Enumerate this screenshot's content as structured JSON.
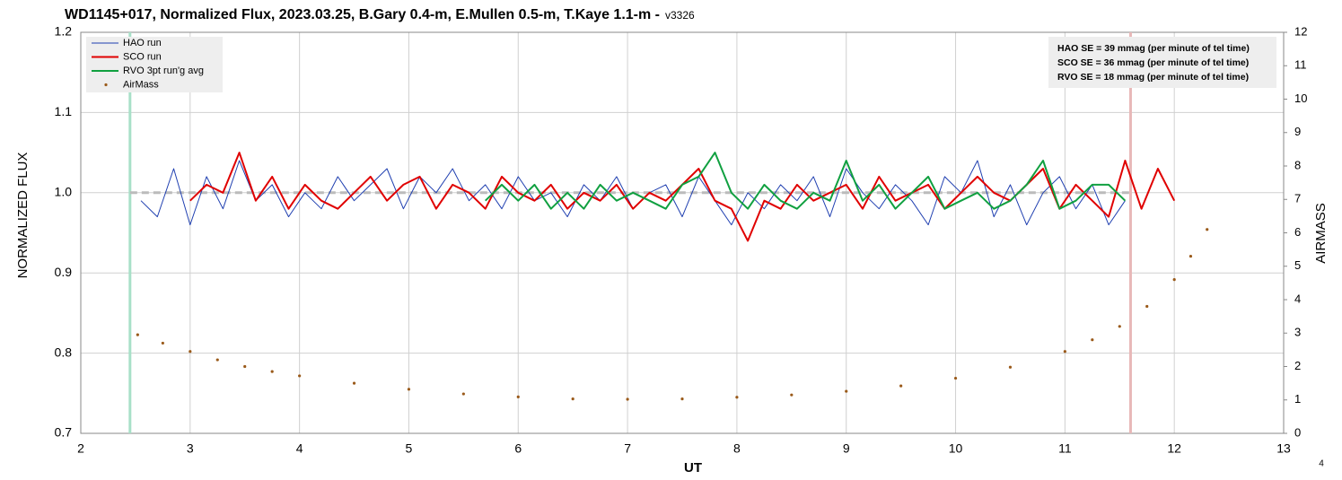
{
  "chart_data": {
    "type": "line",
    "title": "WD1145+017, Normalized Flux, 2023.03.25, B.Gary 0.4-m, E.Mullen 0.5-m, T.Kaye 1.1-m -",
    "version": "v3326",
    "page_number": "4",
    "xlabel": "UT",
    "ylabel": "NORMALIZED FLUX",
    "y2label": "AIRMASS",
    "xlim": [
      2,
      13
    ],
    "xticks": [
      2,
      3,
      4,
      5,
      6,
      7,
      8,
      9,
      10,
      11,
      12,
      13
    ],
    "ylim": [
      0.7,
      1.2
    ],
    "yticks": [
      0.7,
      0.8,
      0.9,
      {
        "value": 1,
        "label": "1.0"
      },
      1.1,
      1.2
    ],
    "y2lim": [
      0,
      12
    ],
    "y2ticks": [
      0,
      1,
      2,
      3,
      4,
      5,
      6,
      7,
      8,
      9,
      10,
      11,
      12
    ],
    "grid": true,
    "legend": "upper left",
    "annotations": [
      "HAO SE = 39 mmag (per minute of tel time)",
      "SCO SE  = 36 mmag (per minute of tel time)",
      "RVO SE = 18 mmag (per minute of tel time)"
    ],
    "reference_line": {
      "y": 1,
      "x": [
        2.45,
        11.6
      ],
      "color": "#bbbbbb"
    },
    "vlines": [
      {
        "x": 2.45,
        "color": "#a8e0c8"
      },
      {
        "x": 11.6,
        "color": "#e8b8b8"
      }
    ],
    "series": [
      {
        "name": "HAO run",
        "color": "#1f3fb0",
        "width": 1,
        "x": [
          2.55,
          2.7,
          2.85,
          3,
          3.15,
          3.3,
          3.45,
          3.6,
          3.75,
          3.9,
          4.05,
          4.2,
          4.35,
          4.5,
          4.65,
          4.8,
          4.95,
          5.1,
          5.25,
          5.4,
          5.55,
          5.7,
          5.85,
          6,
          6.15,
          6.3,
          6.45,
          6.6,
          6.75,
          6.9,
          7.05,
          7.2,
          7.35,
          7.5,
          7.65,
          7.8,
          7.95,
          8.1,
          8.25,
          8.4,
          8.55,
          8.7,
          8.85,
          9,
          9.15,
          9.3,
          9.45,
          9.6,
          9.75,
          9.9,
          10.05,
          10.2,
          10.35,
          10.5,
          10.65,
          10.8,
          10.95,
          11.1,
          11.25,
          11.4,
          11.55
        ],
        "values": [
          0.99,
          0.97,
          1.03,
          0.96,
          1.02,
          0.98,
          1.04,
          0.99,
          1.01,
          0.97,
          1.0,
          0.98,
          1.02,
          0.99,
          1.01,
          1.03,
          0.98,
          1.02,
          1.0,
          1.03,
          0.99,
          1.01,
          0.98,
          1.02,
          0.99,
          1.0,
          0.97,
          1.01,
          0.99,
          1.02,
          0.98,
          1.0,
          1.01,
          0.97,
          1.02,
          0.99,
          0.96,
          1.0,
          0.98,
          1.01,
          0.99,
          1.02,
          0.97,
          1.03,
          1.0,
          0.98,
          1.01,
          0.99,
          0.96,
          1.02,
          1.0,
          1.04,
          0.97,
          1.01,
          0.96,
          1.0,
          1.02,
          0.98,
          1.01,
          0.96,
          0.99
        ]
      },
      {
        "name": "SCO run",
        "color": "#e00000",
        "width": 2,
        "x": [
          3,
          3.15,
          3.3,
          3.45,
          3.6,
          3.75,
          3.9,
          4.05,
          4.2,
          4.35,
          4.5,
          4.65,
          4.8,
          4.95,
          5.1,
          5.25,
          5.4,
          5.55,
          5.7,
          5.85,
          6,
          6.15,
          6.3,
          6.45,
          6.6,
          6.75,
          6.9,
          7.05,
          7.2,
          7.35,
          7.5,
          7.65,
          7.8,
          7.95,
          8.1,
          8.25,
          8.4,
          8.55,
          8.7,
          8.85,
          9,
          9.15,
          9.3,
          9.45,
          9.6,
          9.75,
          9.9,
          10.05,
          10.2,
          10.35,
          10.5,
          10.65,
          10.8,
          10.95,
          11.1,
          11.25,
          11.4,
          11.55,
          11.7,
          11.85,
          12
        ],
        "values": [
          0.99,
          1.01,
          1.0,
          1.05,
          0.99,
          1.02,
          0.98,
          1.01,
          0.99,
          0.98,
          1.0,
          1.02,
          0.99,
          1.01,
          1.02,
          0.98,
          1.01,
          1.0,
          0.98,
          1.02,
          1.0,
          0.99,
          1.01,
          0.98,
          1.0,
          0.99,
          1.01,
          0.98,
          1.0,
          0.99,
          1.01,
          1.03,
          0.99,
          0.98,
          0.94,
          0.99,
          0.98,
          1.01,
          0.99,
          1.0,
          1.01,
          0.98,
          1.02,
          0.99,
          1.0,
          1.01,
          0.98,
          1.0,
          1.02,
          1.0,
          0.99,
          1.01,
          1.03,
          0.98,
          1.01,
          0.99,
          0.97,
          1.04,
          0.98,
          1.03,
          0.99
        ]
      },
      {
        "name": "RVO 3pt run'g avg",
        "color": "#10a040",
        "width": 2,
        "x": [
          5.7,
          5.85,
          6,
          6.15,
          6.3,
          6.45,
          6.6,
          6.75,
          6.9,
          7.05,
          7.2,
          7.35,
          7.5,
          7.65,
          7.8,
          7.95,
          8.1,
          8.25,
          8.4,
          8.55,
          8.7,
          8.85,
          9,
          9.15,
          9.3,
          9.45,
          9.6,
          9.75,
          9.9,
          10.05,
          10.2,
          10.35,
          10.5,
          10.65,
          10.8,
          10.95,
          11.1,
          11.25,
          11.4,
          11.55
        ],
        "values": [
          0.99,
          1.01,
          0.99,
          1.01,
          0.98,
          1.0,
          0.98,
          1.01,
          0.99,
          1.0,
          0.99,
          0.98,
          1.01,
          1.02,
          1.05,
          1.0,
          0.98,
          1.01,
          0.99,
          0.98,
          1.0,
          0.99,
          1.04,
          0.99,
          1.01,
          0.98,
          1.0,
          1.02,
          0.98,
          0.99,
          1.0,
          0.98,
          0.99,
          1.01,
          1.04,
          0.98,
          0.99,
          1.01,
          1.01,
          0.99
        ]
      },
      {
        "name": "AirMass",
        "color": "#9a5a1a",
        "axis": "y2",
        "marker": "dot",
        "x": [
          2.52,
          2.75,
          3,
          3.25,
          3.5,
          3.75,
          4,
          4.5,
          5,
          5.5,
          6,
          6.5,
          7,
          7.5,
          8,
          8.5,
          9,
          9.5,
          10,
          10.5,
          11,
          11.25,
          11.5,
          11.75,
          12,
          12.15,
          12.3
        ],
        "values": [
          2.95,
          2.7,
          2.45,
          2.2,
          2,
          1.85,
          1.72,
          1.5,
          1.32,
          1.18,
          1.09,
          1.03,
          1.02,
          1.03,
          1.08,
          1.15,
          1.26,
          1.42,
          1.65,
          1.98,
          2.45,
          2.8,
          3.2,
          3.8,
          4.6,
          5.3,
          6.1
        ]
      }
    ]
  }
}
